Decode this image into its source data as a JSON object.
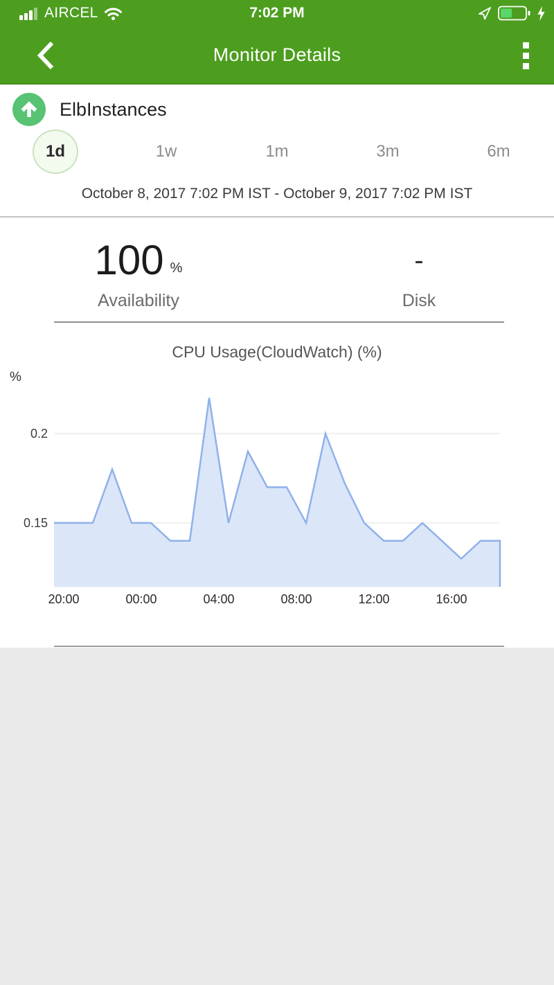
{
  "status_bar": {
    "carrier": "AIRCEL",
    "time": "7:02 PM",
    "signal_bars_filled": 3,
    "signal_bars_total": 4,
    "battery_percent_visual": 45,
    "charging": true
  },
  "nav_bar": {
    "title": "Monitor Details"
  },
  "monitor": {
    "name": "ElbInstances",
    "status": "up"
  },
  "range_tabs": {
    "items": [
      {
        "label": "1d",
        "selected": true
      },
      {
        "label": "1w",
        "selected": false
      },
      {
        "label": "1m",
        "selected": false
      },
      {
        "label": "3m",
        "selected": false
      },
      {
        "label": "6m",
        "selected": false
      }
    ]
  },
  "date_range": "October 8, 2017 7:02 PM IST - October 9, 2017 7:02 PM IST",
  "stats": [
    {
      "value": "100",
      "unit": "%",
      "label": "Availability"
    },
    {
      "value": "-",
      "unit": "",
      "label": "Disk"
    }
  ],
  "chart_data": {
    "type": "area",
    "title": "CPU Usage(CloudWatch) (%)",
    "series_name": "CPU Usage(CloudWatch)",
    "ylabel": "%",
    "grid": true,
    "legend": "none",
    "x_offset_unit": "hours",
    "xlim": [
      0,
      23
    ],
    "ylim": [
      0.1143,
      0.2275
    ],
    "y_ticks": [
      {
        "value": 0.2,
        "label": "0.2"
      },
      {
        "value": 0.15,
        "label": "0.15"
      }
    ],
    "x_ticks": [
      {
        "offset": 0.5,
        "label": "20:00"
      },
      {
        "offset": 4.5,
        "label": "00:00"
      },
      {
        "offset": 8.5,
        "label": "04:00"
      },
      {
        "offset": 12.5,
        "label": "08:00"
      },
      {
        "offset": 16.5,
        "label": "12:00"
      },
      {
        "offset": 20.5,
        "label": "16:00"
      }
    ],
    "points": [
      [
        0,
        0.15
      ],
      [
        2,
        0.15
      ],
      [
        3,
        0.18
      ],
      [
        4,
        0.15
      ],
      [
        5,
        0.15
      ],
      [
        6,
        0.14
      ],
      [
        7,
        0.14
      ],
      [
        8,
        0.22
      ],
      [
        9,
        0.15
      ],
      [
        10,
        0.19
      ],
      [
        11,
        0.17
      ],
      [
        12,
        0.17
      ],
      [
        13,
        0.15
      ],
      [
        14,
        0.2
      ],
      [
        15,
        0.172
      ],
      [
        16,
        0.15
      ],
      [
        17,
        0.14
      ],
      [
        18,
        0.14
      ],
      [
        19,
        0.15
      ],
      [
        21,
        0.13
      ],
      [
        22,
        0.14
      ],
      [
        23,
        0.14
      ]
    ],
    "colors": {
      "area_fill": "#dbe6f9",
      "line": "#8fb1ea",
      "gridline": "#ececec"
    }
  },
  "colors": {
    "header_green": "#4d9e1f",
    "header_green_border": "#3f8d18",
    "status_up_green": "#57c373",
    "selected_chip_bg": "#f3faee",
    "selected_chip_border": "#cbe2bd",
    "battery_fill_green": "#58d66a",
    "page_background": "#eaeaea"
  }
}
